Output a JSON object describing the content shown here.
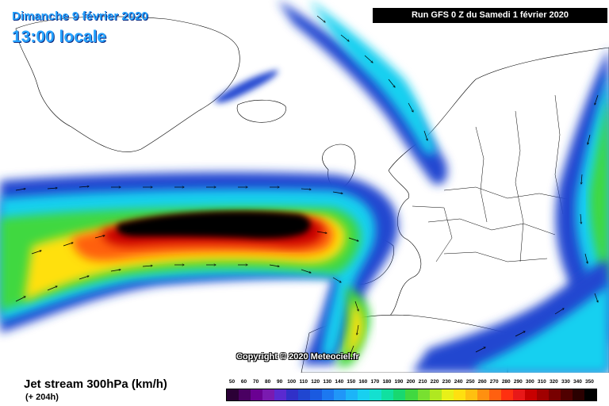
{
  "header": {
    "date": "Dimanche 9 février 2020",
    "time": "13:00 locale",
    "run": "Run GFS 0 Z du Samedi 1 février 2020"
  },
  "map": {
    "copyright": "Copyright © 2020 Meteociel.fr",
    "ocean_color": "#ffffff",
    "land_color": "#ffffff",
    "border_color": "#000000"
  },
  "footer": {
    "product": "Jet stream 300hPa (km/h)",
    "lead": "(+ 204h)"
  },
  "legend": {
    "ticks": [
      "50",
      "60",
      "70",
      "80",
      "90",
      "100",
      "110",
      "120",
      "130",
      "140",
      "150",
      "160",
      "170",
      "180",
      "190",
      "200",
      "210",
      "220",
      "230",
      "240",
      "250",
      "260",
      "270",
      "280",
      "290",
      "300",
      "310",
      "320",
      "330",
      "340",
      "350"
    ],
    "colors": [
      "#2b0036",
      "#4a0062",
      "#6a0092",
      "#7a1ab0",
      "#5a2ad0",
      "#3030c8",
      "#2046d0",
      "#1a5ae0",
      "#1c78f0",
      "#2096f8",
      "#1cb4f8",
      "#18d0f0",
      "#14e0d0",
      "#10e0a0",
      "#18d870",
      "#40d840",
      "#78e030",
      "#b0e820",
      "#e8f018",
      "#ffe010",
      "#ffc010",
      "#ff9010",
      "#ff6010",
      "#ff3010",
      "#e81818",
      "#c80000",
      "#a00000",
      "#780000",
      "#500000",
      "#2a0000",
      "#000000"
    ]
  }
}
